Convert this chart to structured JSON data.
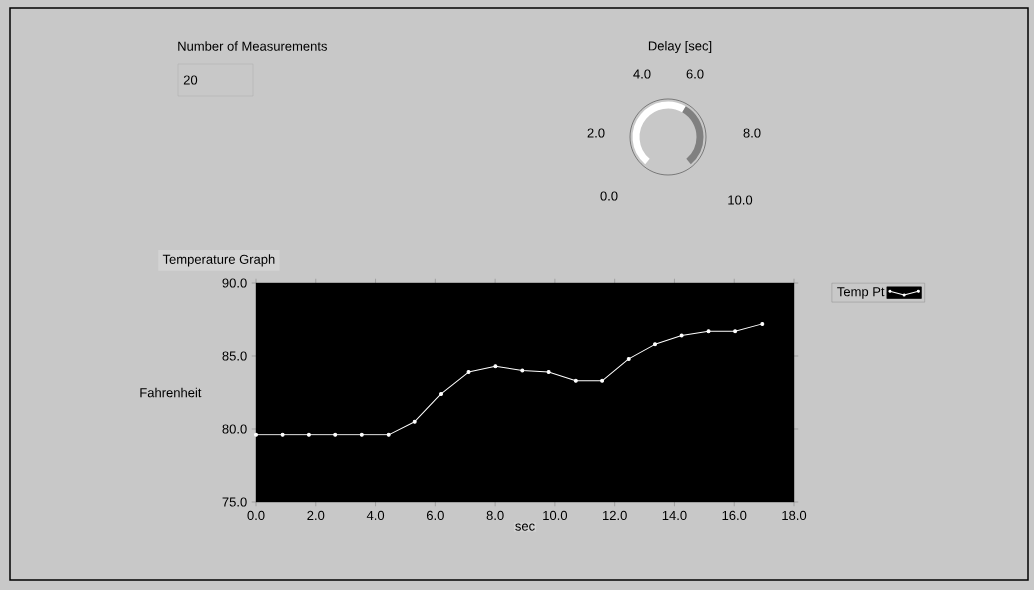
{
  "chart_data": {
    "type": "line",
    "title": "Temperature Graph",
    "xlabel": "sec",
    "ylabel": "Fahrenheit",
    "x": [
      0,
      0.89,
      1.77,
      2.65,
      3.54,
      4.44,
      5.31,
      6.19,
      7.11,
      8.01,
      8.91,
      9.79,
      10.7,
      11.58,
      12.47,
      13.35,
      14.24,
      15.14,
      16.03,
      16.94
    ],
    "series": [
      {
        "name": "Temp Pt",
        "color": "#ffffff",
        "values": [
          79.6,
          79.6,
          79.6,
          79.6,
          79.6,
          79.6,
          80.5,
          82.4,
          83.9,
          84.3,
          84.0,
          83.9,
          83.3,
          83.3,
          84.8,
          85.8,
          86.4,
          86.7,
          86.7,
          87.2
        ]
      }
    ],
    "xlim": [
      0,
      18
    ],
    "ylim": [
      75,
      90
    ],
    "xticks": [
      {
        "value": 0,
        "label": "0.0"
      },
      {
        "value": 2,
        "label": "2.0"
      },
      {
        "value": 4,
        "label": "4.0"
      },
      {
        "value": 6,
        "label": "6.0"
      },
      {
        "value": 8,
        "label": "8.0"
      },
      {
        "value": 10,
        "label": "10.0"
      },
      {
        "value": 12,
        "label": "12.0"
      },
      {
        "value": 14,
        "label": "14.0"
      },
      {
        "value": 16,
        "label": "16.0"
      },
      {
        "value": 18,
        "label": "18.0"
      }
    ],
    "yticks": [
      {
        "value": 75,
        "label": "75.0"
      },
      {
        "value": 80,
        "label": "80.0"
      },
      {
        "value": 85,
        "label": "85.0"
      },
      {
        "value": 90,
        "label": "90.0"
      }
    ],
    "grid": false,
    "legend": "top right",
    "marker": "circle",
    "line_style": "solid",
    "annotations": [
      "Number of Measurements",
      "20",
      "Delay [sec]",
      "0.0",
      "2.0",
      "4.0",
      "6.0",
      "8.0",
      "10.0"
    ]
  }
}
